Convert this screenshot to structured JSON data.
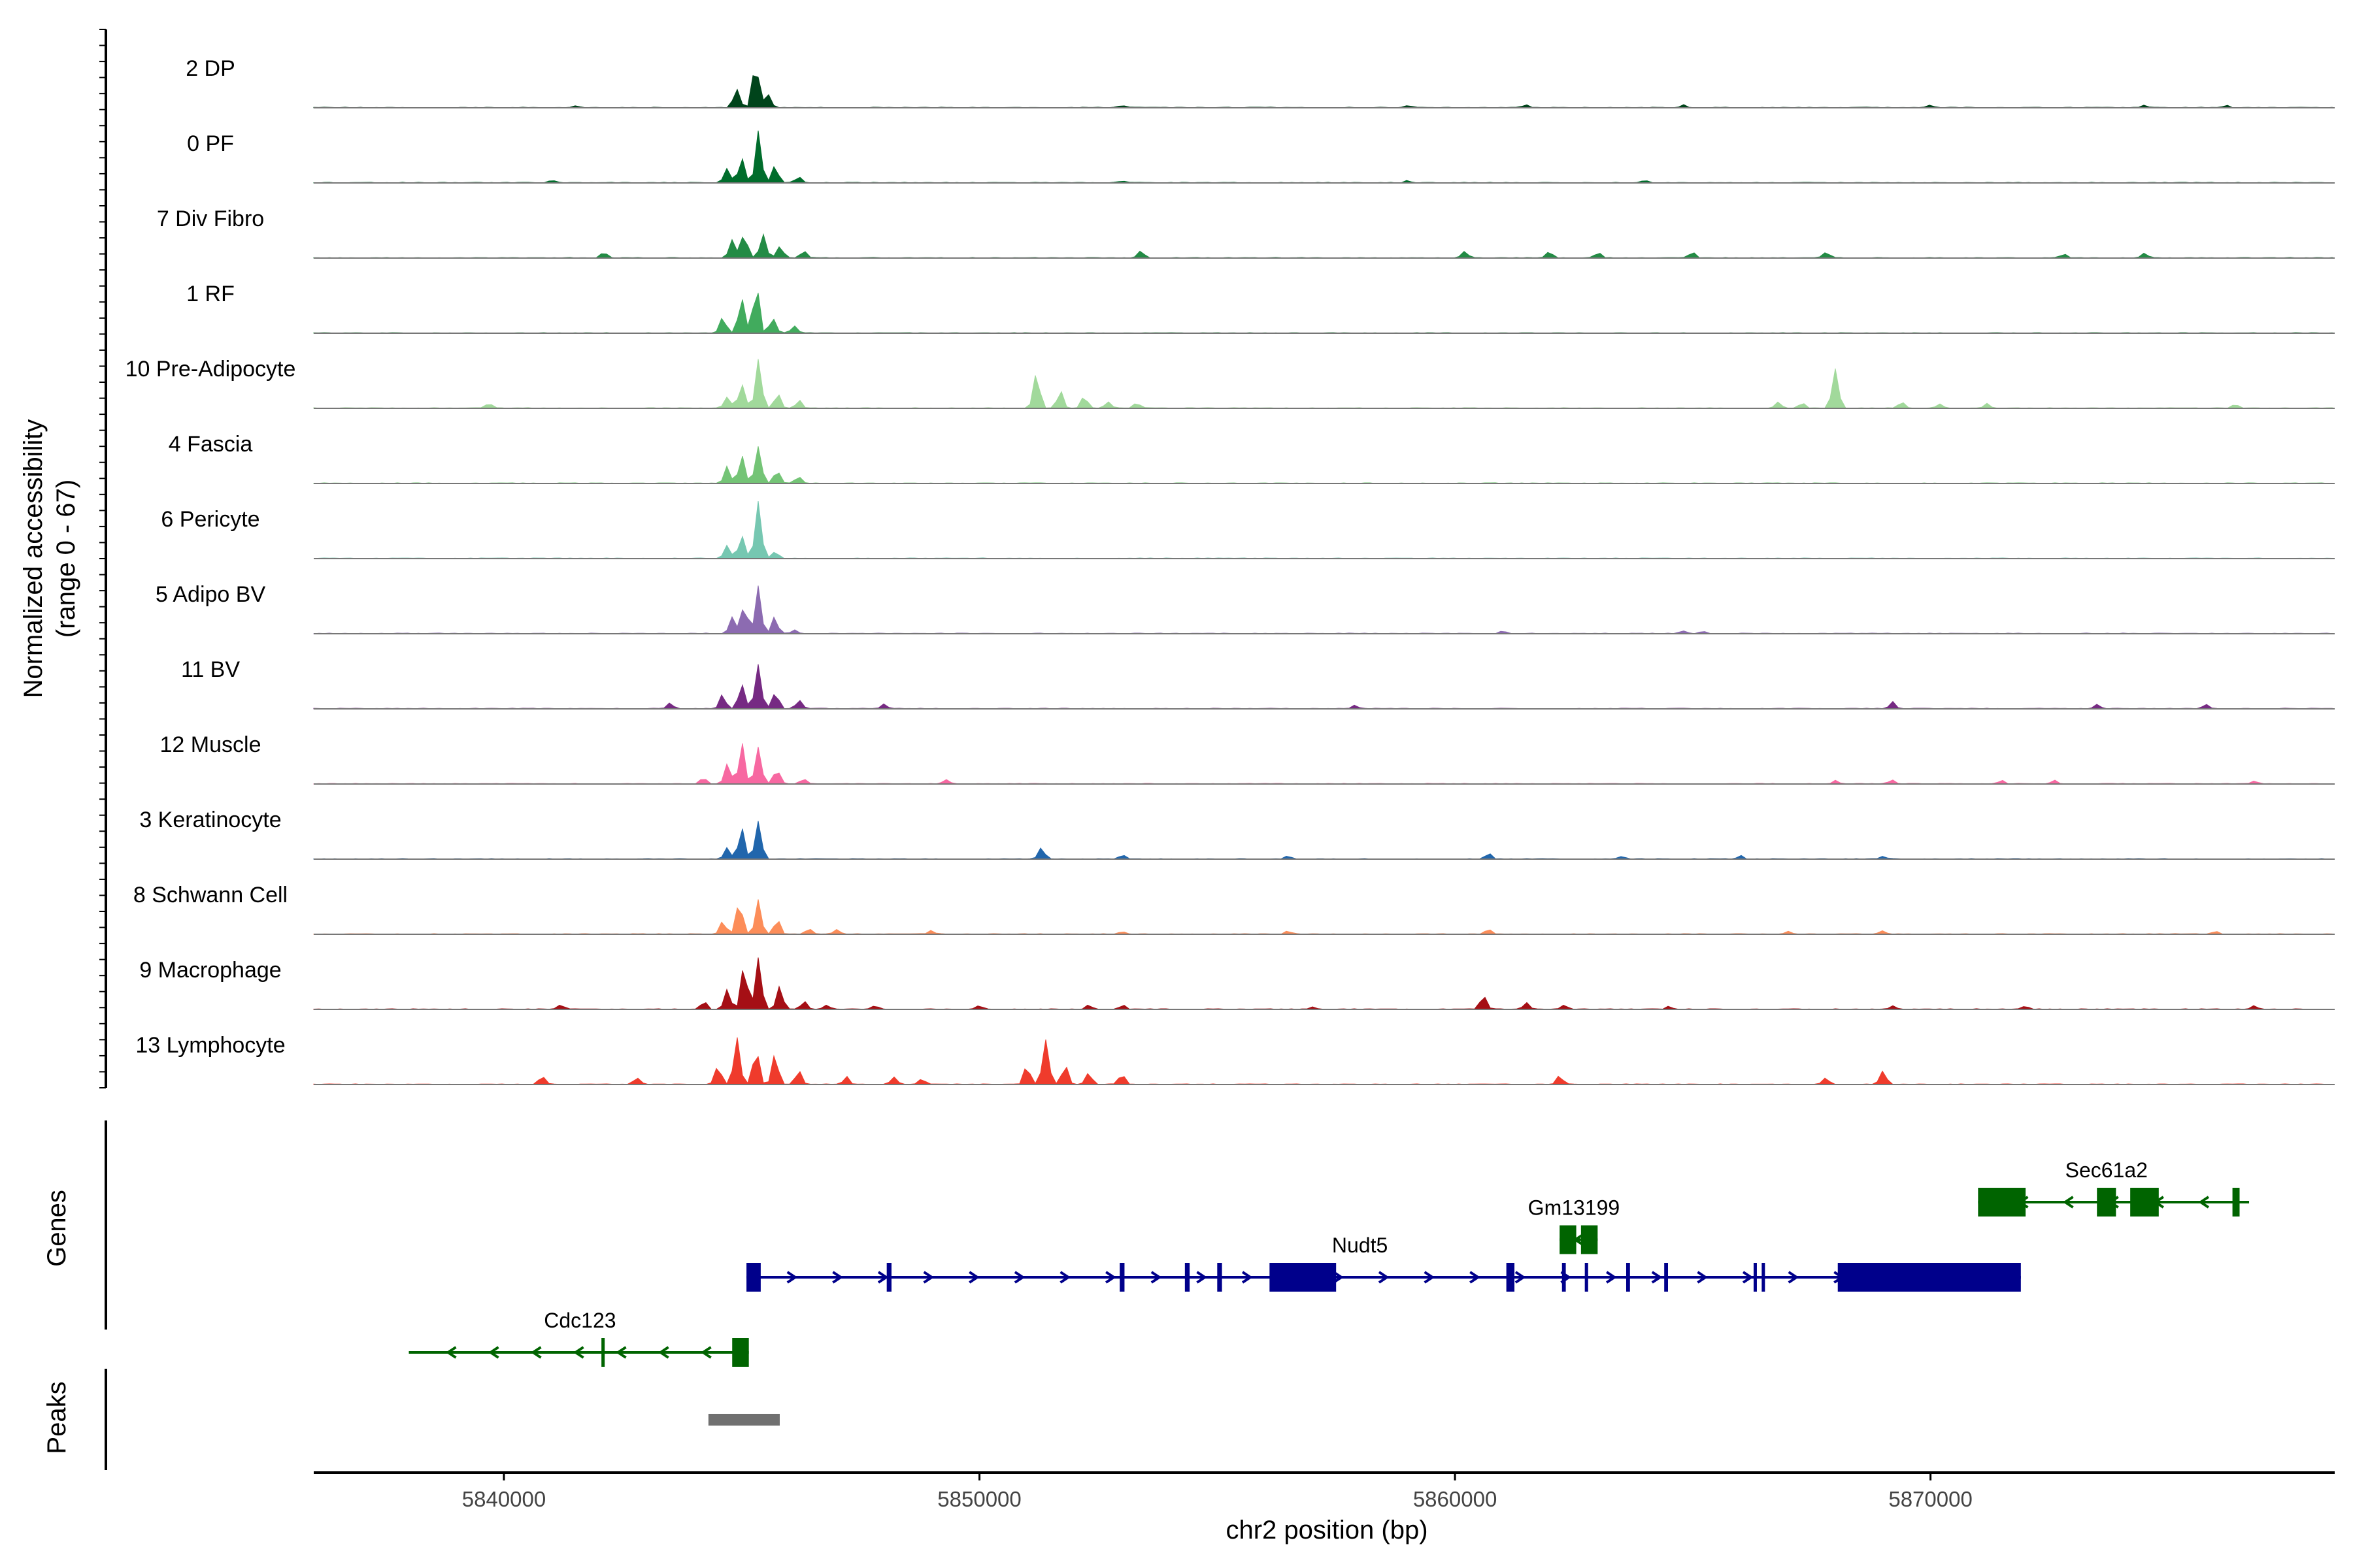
{
  "chart_data": {
    "type": "area",
    "region": "chr2",
    "xlim": [
      5836000,
      5878500
    ],
    "ylim": [
      0,
      67
    ],
    "ylabel": "Normalized accessibility",
    "ylabel2": "(range 0 - 67)",
    "xlabel": "chr2 position (bp)",
    "xticks": [
      5840000,
      5850000,
      5860000,
      5870000
    ],
    "xtick_labels": [
      "5840000",
      "5850000",
      "5860000",
      "5870000"
    ],
    "panel_titles": {
      "genes": "Genes",
      "peaks": "Peaks"
    },
    "tracks": [
      {
        "label": "2 DP",
        "color": "#00441b",
        "peaks": [
          [
            5844900,
            40
          ],
          [
            5845300,
            90
          ],
          [
            5845550,
            30
          ],
          [
            5841500,
            4
          ],
          [
            5853000,
            4
          ],
          [
            5859000,
            4
          ],
          [
            5861500,
            5
          ],
          [
            5864800,
            5
          ],
          [
            5870000,
            4
          ],
          [
            5874500,
            4
          ],
          [
            5876200,
            4
          ]
        ]
      },
      {
        "label": "0 PF",
        "color": "#006d2c",
        "peaks": [
          [
            5844700,
            30
          ],
          [
            5845000,
            55
          ],
          [
            5845350,
            90
          ],
          [
            5845700,
            30
          ],
          [
            5846200,
            10
          ],
          [
            5841000,
            4
          ],
          [
            5853000,
            4
          ],
          [
            5859000,
            4
          ],
          [
            5864000,
            4
          ]
        ]
      },
      {
        "label": "7 Div Fibro",
        "color": "#238b45",
        "peaks": [
          [
            5844800,
            40
          ],
          [
            5845050,
            55
          ],
          [
            5845450,
            50
          ],
          [
            5845800,
            25
          ],
          [
            5846300,
            12
          ],
          [
            5842100,
            10
          ],
          [
            5853400,
            14
          ],
          [
            5860200,
            14
          ],
          [
            5862000,
            12
          ],
          [
            5863000,
            10
          ],
          [
            5865000,
            10
          ],
          [
            5867800,
            12
          ],
          [
            5872800,
            8
          ],
          [
            5874500,
            8
          ]
        ]
      },
      {
        "label": "1 RF",
        "color": "#41ab5d",
        "peaks": [
          [
            5844600,
            30
          ],
          [
            5845000,
            70
          ],
          [
            5845300,
            90
          ],
          [
            5845650,
            35
          ],
          [
            5846100,
            12
          ]
        ]
      },
      {
        "label": "10 Pre-Adipocyte",
        "color": "#a1d99b",
        "peaks": [
          [
            5844700,
            25
          ],
          [
            5845000,
            55
          ],
          [
            5845350,
            95
          ],
          [
            5845750,
            30
          ],
          [
            5846200,
            15
          ],
          [
            5839700,
            10
          ],
          [
            5851200,
            75
          ],
          [
            5851700,
            30
          ],
          [
            5852200,
            25
          ],
          [
            5852700,
            15
          ],
          [
            5853300,
            10
          ],
          [
            5868000,
            75
          ],
          [
            5866800,
            12
          ],
          [
            5867300,
            12
          ],
          [
            5869400,
            12
          ],
          [
            5870200,
            10
          ],
          [
            5871200,
            8
          ],
          [
            5876400,
            8
          ]
        ]
      },
      {
        "label": "4 Fascia",
        "color": "#74c476",
        "peaks": [
          [
            5844700,
            30
          ],
          [
            5845000,
            60
          ],
          [
            5845350,
            75
          ],
          [
            5845750,
            25
          ],
          [
            5846200,
            15
          ]
        ]
      },
      {
        "label": "6 Pericyte",
        "color": "#76c7b1",
        "peaks": [
          [
            5844700,
            25
          ],
          [
            5845000,
            45
          ],
          [
            5845350,
            100
          ],
          [
            5845700,
            15
          ]
        ]
      },
      {
        "label": "5 Adipo BV",
        "color": "#8c6bb1",
        "peaks": [
          [
            5844800,
            30
          ],
          [
            5845050,
            55
          ],
          [
            5845350,
            85
          ],
          [
            5845700,
            30
          ],
          [
            5846100,
            8
          ],
          [
            5861000,
            5
          ],
          [
            5864800,
            6
          ],
          [
            5865200,
            5
          ]
        ]
      },
      {
        "label": "11 BV",
        "color": "#762a83",
        "peaks": [
          [
            5843500,
            12
          ],
          [
            5844600,
            30
          ],
          [
            5845000,
            55
          ],
          [
            5845350,
            95
          ],
          [
            5845700,
            35
          ],
          [
            5846200,
            18
          ],
          [
            5848000,
            10
          ],
          [
            5857900,
            8
          ],
          [
            5869200,
            12
          ],
          [
            5873500,
            8
          ],
          [
            5875800,
            8
          ]
        ]
      },
      {
        "label": "12 Muscle",
        "color": "#f768a1",
        "peaks": [
          [
            5844200,
            12
          ],
          [
            5844700,
            40
          ],
          [
            5845000,
            75
          ],
          [
            5845350,
            65
          ],
          [
            5845750,
            30
          ],
          [
            5846300,
            10
          ],
          [
            5849300,
            8
          ],
          [
            5868000,
            6
          ],
          [
            5869200,
            8
          ],
          [
            5871500,
            6
          ],
          [
            5872600,
            6
          ],
          [
            5876800,
            6
          ]
        ]
      },
      {
        "label": "3 Keratinocyte",
        "color": "#2166ac",
        "peaks": [
          [
            5844700,
            20
          ],
          [
            5845000,
            55
          ],
          [
            5845350,
            80
          ],
          [
            5851300,
            25
          ],
          [
            5853000,
            8
          ],
          [
            5856500,
            6
          ],
          [
            5860700,
            12
          ],
          [
            5863500,
            6
          ],
          [
            5866000,
            6
          ],
          [
            5869000,
            5
          ]
        ]
      },
      {
        "label": "8 Schwann Cell",
        "color": "#fc8d59",
        "peaks": [
          [
            5844600,
            25
          ],
          [
            5844950,
            60
          ],
          [
            5845350,
            65
          ],
          [
            5845750,
            25
          ],
          [
            5846400,
            10
          ],
          [
            5847000,
            8
          ],
          [
            5849000,
            6
          ],
          [
            5853000,
            6
          ],
          [
            5856500,
            6
          ],
          [
            5860700,
            8
          ],
          [
            5867000,
            6
          ],
          [
            5869000,
            6
          ],
          [
            5876000,
            6
          ]
        ]
      },
      {
        "label": "9 Macrophage",
        "color": "#a50f15",
        "peaks": [
          [
            5844200,
            15
          ],
          [
            5844700,
            35
          ],
          [
            5845050,
            90
          ],
          [
            5845350,
            95
          ],
          [
            5845800,
            40
          ],
          [
            5846300,
            15
          ],
          [
            5841200,
            8
          ],
          [
            5846800,
            8
          ],
          [
            5847800,
            6
          ],
          [
            5850000,
            6
          ],
          [
            5852300,
            8
          ],
          [
            5853000,
            8
          ],
          [
            5857000,
            6
          ],
          [
            5860600,
            25
          ],
          [
            5861500,
            12
          ],
          [
            5862300,
            10
          ],
          [
            5864500,
            6
          ],
          [
            5869200,
            8
          ],
          [
            5872000,
            6
          ],
          [
            5876800,
            6
          ]
        ]
      },
      {
        "label": "13 Lymphocyte",
        "color": "#ef3b2c",
        "peaks": [
          [
            5844500,
            40
          ],
          [
            5844900,
            100
          ],
          [
            5845300,
            70
          ],
          [
            5845700,
            55
          ],
          [
            5846200,
            30
          ],
          [
            5840800,
            15
          ],
          [
            5842800,
            15
          ],
          [
            5847200,
            15
          ],
          [
            5848200,
            15
          ],
          [
            5848800,
            12
          ],
          [
            5851000,
            35
          ],
          [
            5851400,
            100
          ],
          [
            5851800,
            35
          ],
          [
            5852300,
            25
          ],
          [
            5853000,
            18
          ],
          [
            5862200,
            15
          ],
          [
            5867800,
            12
          ],
          [
            5869000,
            25
          ]
        ]
      }
    ],
    "genes": [
      {
        "name": "Nudt5",
        "strand": "+",
        "color": "#00008b",
        "row": 1,
        "start": 5845100,
        "end": 5871900,
        "exons": [
          [
            5845100,
            5845400
          ],
          [
            5848050,
            5848150
          ],
          [
            5852950,
            5853050
          ],
          [
            5854320,
            5854420
          ],
          [
            5855000,
            5855100
          ],
          [
            5856100,
            5857500
          ],
          [
            5861080,
            5861250
          ],
          [
            5862250,
            5862330
          ],
          [
            5862730,
            5862800
          ],
          [
            5863600,
            5863680
          ],
          [
            5864400,
            5864480
          ],
          [
            5866280,
            5866330
          ],
          [
            5866450,
            5866500
          ],
          [
            5868050,
            5871900
          ]
        ],
        "label_x": 5858000
      },
      {
        "name": "Cdc123",
        "strand": "-",
        "color": "#006400",
        "row": 2,
        "start": 5838000,
        "end": 5845150,
        "exons": [
          [
            5842050,
            5842100
          ],
          [
            5844800,
            5845150
          ]
        ],
        "label_x": 5841600
      },
      {
        "name": "Gm13199",
        "strand": "-",
        "color": "#006400",
        "row": 0.5,
        "start": 5862200,
        "end": 5863000,
        "exons": [
          [
            5862200,
            5862550
          ],
          [
            5862650,
            5863000
          ]
        ],
        "label_x": 5862500
      },
      {
        "name": "Sec61a2",
        "strand": "-",
        "color": "#006400",
        "row": 0,
        "start": 5871000,
        "end": 5876700,
        "exons": [
          [
            5871000,
            5872000
          ],
          [
            5873500,
            5873900
          ],
          [
            5874200,
            5874800
          ],
          [
            5876350,
            5876500
          ]
        ],
        "label_x": 5873700
      }
    ],
    "peaks_track": [
      {
        "start": 5844300,
        "end": 5845800,
        "color": "#707070"
      }
    ]
  }
}
